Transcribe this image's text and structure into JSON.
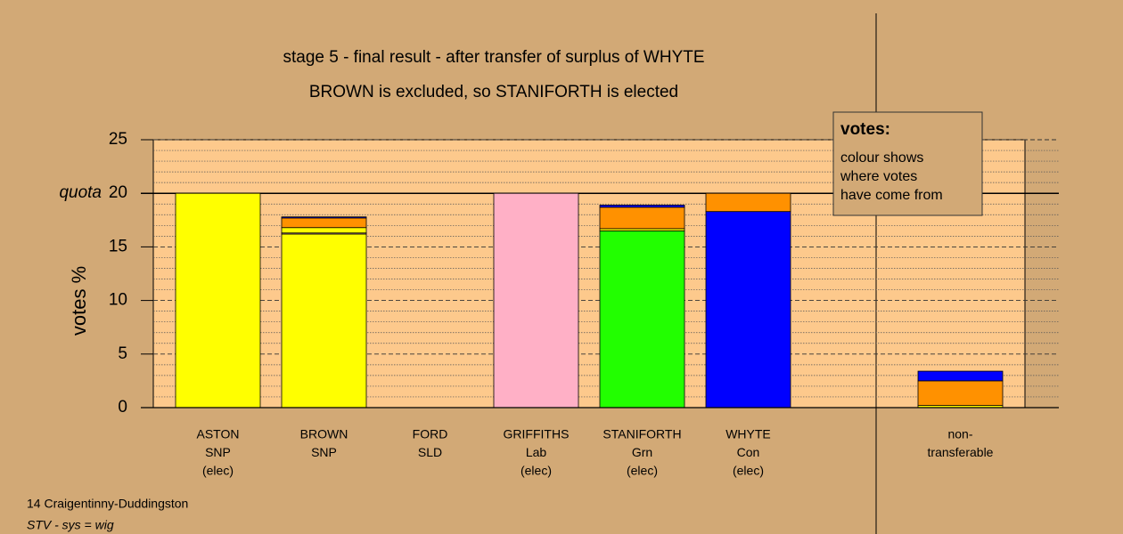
{
  "chart_data": {
    "type": "stacked-bar",
    "title": "stage 5 - final result - after transfer of surplus of WHYTE",
    "subtitle": "BROWN is excluded, so STANIFORTH is elected",
    "ylabel": "votes %",
    "ylim": [
      0,
      25
    ],
    "yticks": [
      0,
      5,
      10,
      15,
      20,
      25
    ],
    "minor_yticks": [
      1,
      2,
      3,
      4,
      6,
      7,
      8,
      9,
      11,
      12,
      13,
      14,
      16,
      17,
      18,
      19,
      21,
      22,
      23,
      24
    ],
    "quota": {
      "value": 20,
      "label": "quota"
    },
    "bars": [
      {
        "label": [
          "ASTON",
          "SNP",
          "(elec)"
        ],
        "segments": [
          {
            "color": "#ffff00",
            "value": 20
          }
        ]
      },
      {
        "label": [
          "BROWN",
          "SNP"
        ],
        "segments": [
          {
            "color": "#ffff00",
            "value": 16.2
          },
          {
            "color": "#ffb6c8",
            "value": 0.1
          },
          {
            "color": "#ffff00",
            "value": 0.5
          },
          {
            "color": "#ff9100",
            "value": 0.9
          },
          {
            "color": "#0000ff",
            "value": 0.1
          }
        ]
      },
      {
        "label": [
          "FORD",
          "SLD"
        ],
        "segments": []
      },
      {
        "label": [
          "GRIFFITHS",
          "Lab",
          "(elec)"
        ],
        "segments": [
          {
            "color": "#ffb0c6",
            "value": 20
          }
        ]
      },
      {
        "label": [
          "STANIFORTH",
          "Grn",
          "(elec)"
        ],
        "segments": [
          {
            "color": "#22ff00",
            "value": 16.5
          },
          {
            "color": "#ffff00",
            "value": 0.2
          },
          {
            "color": "#ff9100",
            "value": 2.0
          },
          {
            "color": "#0000ff",
            "value": 0.2
          }
        ]
      },
      {
        "label": [
          "WHYTE",
          "Con",
          "(elec)"
        ],
        "segments": [
          {
            "color": "#0000ff",
            "value": 18.3
          },
          {
            "color": "#ff9100",
            "value": 1.7
          }
        ]
      },
      {
        "label": [
          "non-",
          "transferable"
        ],
        "segments": [
          {
            "color": "#ffff00",
            "value": 0.2
          },
          {
            "color": "#ff9100",
            "value": 2.3
          },
          {
            "color": "#0000ff",
            "value": 0.9
          }
        ]
      }
    ],
    "legend": {
      "title": "votes:",
      "lines": [
        "colour shows",
        "where votes",
        "have come from"
      ]
    },
    "footer": [
      "14 Craigentinny-Duddingston",
      "STV - sys = wig"
    ]
  }
}
